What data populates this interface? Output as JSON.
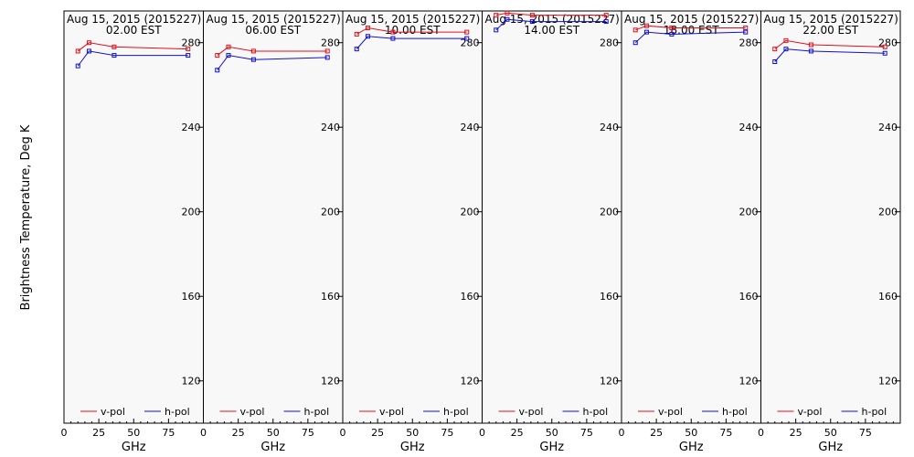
{
  "ylabel": "Brightness Temperature, Deg K",
  "xlabel": "GHz",
  "colors": {
    "v": "#e0101a",
    "h": "#1010d0",
    "plot_bg": "#f8f8f8"
  },
  "chart_data": [
    {
      "type": "line",
      "title": "Aug 15, 2015 (2015227)",
      "subtitle": "02.00 EST",
      "x": [
        10,
        18,
        36,
        89
      ],
      "series": [
        {
          "name": "v-pol",
          "values": [
            276,
            280,
            278,
            277
          ]
        },
        {
          "name": "h-pol",
          "values": [
            269,
            276,
            274,
            274
          ]
        }
      ],
      "ylim": [
        100,
        295
      ],
      "xlim": [
        0,
        100
      ],
      "yticks": [
        120,
        160,
        200,
        240,
        280
      ],
      "xticks": [
        0,
        25,
        50,
        75
      ],
      "legend": "bottom"
    },
    {
      "type": "line",
      "title": "Aug 15, 2015 (2015227)",
      "subtitle": "06.00 EST",
      "x": [
        10,
        18,
        36,
        89
      ],
      "series": [
        {
          "name": "v-pol",
          "values": [
            274,
            278,
            276,
            276
          ]
        },
        {
          "name": "h-pol",
          "values": [
            267,
            274,
            272,
            273
          ]
        }
      ],
      "ylim": [
        100,
        295
      ],
      "xlim": [
        0,
        100
      ],
      "yticks": [
        120,
        160,
        200,
        240,
        280
      ],
      "xticks": [
        0,
        25,
        50,
        75
      ],
      "legend": "bottom"
    },
    {
      "type": "line",
      "title": "Aug 15, 2015 (2015227)",
      "subtitle": "10.00 EST",
      "x": [
        10,
        18,
        36,
        89
      ],
      "series": [
        {
          "name": "v-pol",
          "values": [
            284,
            287,
            285,
            285
          ]
        },
        {
          "name": "h-pol",
          "values": [
            277,
            283,
            282,
            282
          ]
        }
      ],
      "ylim": [
        100,
        295
      ],
      "xlim": [
        0,
        100
      ],
      "yticks": [
        120,
        160,
        200,
        240,
        280
      ],
      "xticks": [
        0,
        25,
        50,
        75
      ],
      "legend": "bottom"
    },
    {
      "type": "line",
      "title": "Aug 15, 2015 (2015227)",
      "subtitle": "14.00 EST",
      "x": [
        10,
        18,
        36,
        89
      ],
      "series": [
        {
          "name": "v-pol",
          "values": [
            293,
            294,
            293,
            293
          ]
        },
        {
          "name": "h-pol",
          "values": [
            286,
            291,
            290,
            290
          ]
        }
      ],
      "ylim": [
        100,
        295
      ],
      "xlim": [
        0,
        100
      ],
      "yticks": [
        120,
        160,
        200,
        240,
        280
      ],
      "xticks": [
        0,
        25,
        50,
        75
      ],
      "legend": "bottom"
    },
    {
      "type": "line",
      "title": "Aug 15, 2015 (2015227)",
      "subtitle": "18.00 EST",
      "x": [
        10,
        18,
        36,
        89
      ],
      "series": [
        {
          "name": "v-pol",
          "values": [
            286,
            288,
            287,
            287
          ]
        },
        {
          "name": "h-pol",
          "values": [
            280,
            285,
            284,
            285
          ]
        }
      ],
      "ylim": [
        100,
        295
      ],
      "xlim": [
        0,
        100
      ],
      "yticks": [
        120,
        160,
        200,
        240,
        280
      ],
      "xticks": [
        0,
        25,
        50,
        75
      ],
      "legend": "bottom"
    },
    {
      "type": "line",
      "title": "Aug 15, 2015 (2015227)",
      "subtitle": "22.00 EST",
      "x": [
        10,
        18,
        36,
        89
      ],
      "series": [
        {
          "name": "v-pol",
          "values": [
            277,
            281,
            279,
            278
          ]
        },
        {
          "name": "h-pol",
          "values": [
            271,
            277,
            276,
            275
          ]
        }
      ],
      "ylim": [
        100,
        295
      ],
      "xlim": [
        0,
        100
      ],
      "yticks": [
        120,
        160,
        200,
        240,
        280
      ],
      "xticks": [
        0,
        25,
        50,
        75
      ],
      "legend": "bottom"
    }
  ]
}
